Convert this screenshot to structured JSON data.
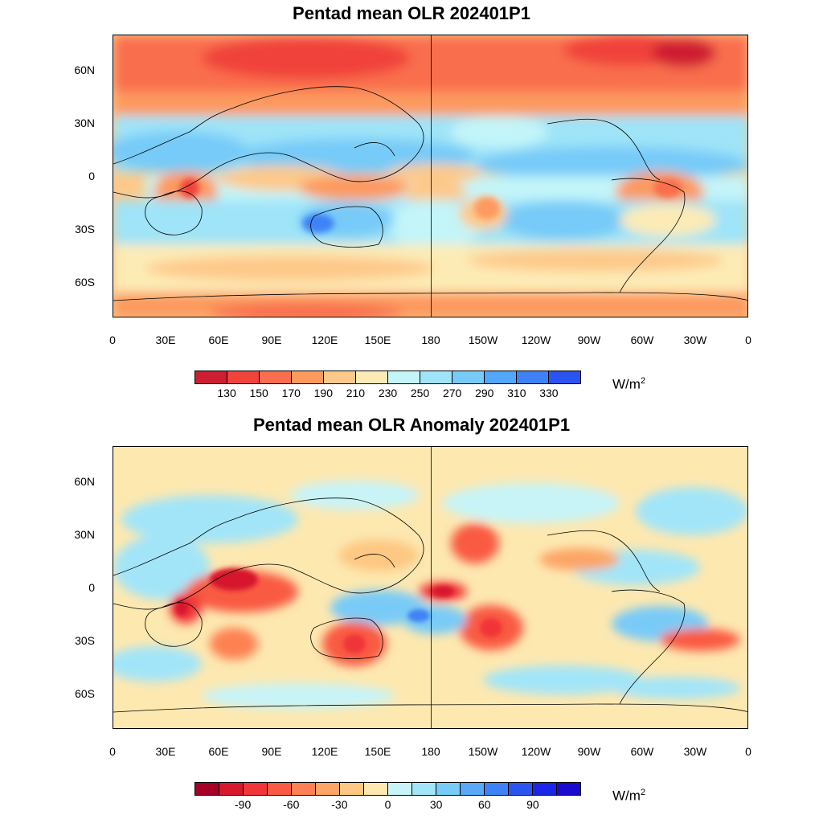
{
  "figure": {
    "units_base": "W/m",
    "units_sup": "2"
  },
  "panels": [
    {
      "title": "Pentad mean OLR 202401P1",
      "lat_labels": [
        "60N",
        "30N",
        "0",
        "30S",
        "60S"
      ],
      "lon_labels": [
        "0",
        "30E",
        "60E",
        "90E",
        "120E",
        "150E",
        "180",
        "150W",
        "120W",
        "90W",
        "60W",
        "30W",
        "0"
      ],
      "colorbar": {
        "colors": [
          "#cf1d32",
          "#f0433a",
          "#f96e4e",
          "#fc9a5e",
          "#fdc98a",
          "#fdebb5",
          "#c3f5f9",
          "#9fe4f8",
          "#77cbf8",
          "#52a7f8",
          "#3e82f6",
          "#2a54f2"
        ],
        "labels": [
          "130",
          "150",
          "170",
          "190",
          "210",
          "230",
          "250",
          "270",
          "290",
          "310",
          "330"
        ]
      }
    },
    {
      "title": "Pentad mean OLR Anomaly 202401P1",
      "lat_labels": [
        "60N",
        "30N",
        "0",
        "30S",
        "60S"
      ],
      "lon_labels": [
        "0",
        "30E",
        "60E",
        "90E",
        "120E",
        "150E",
        "180",
        "150W",
        "120W",
        "90W",
        "60W",
        "30W",
        "0"
      ],
      "colorbar": {
        "colors": [
          "#a50026",
          "#d7192d",
          "#f03639",
          "#f95a43",
          "#fd8152",
          "#fca566",
          "#fdc882",
          "#fde8b0",
          "#c8f4f8",
          "#a3e5f8",
          "#79cbf7",
          "#5aa9f6",
          "#3f82f3",
          "#2a55ee",
          "#1b26e6",
          "#1b0bcf"
        ],
        "labels": [
          "-90",
          "-60",
          "-30",
          "0",
          "30",
          "60",
          "90"
        ]
      }
    }
  ]
}
